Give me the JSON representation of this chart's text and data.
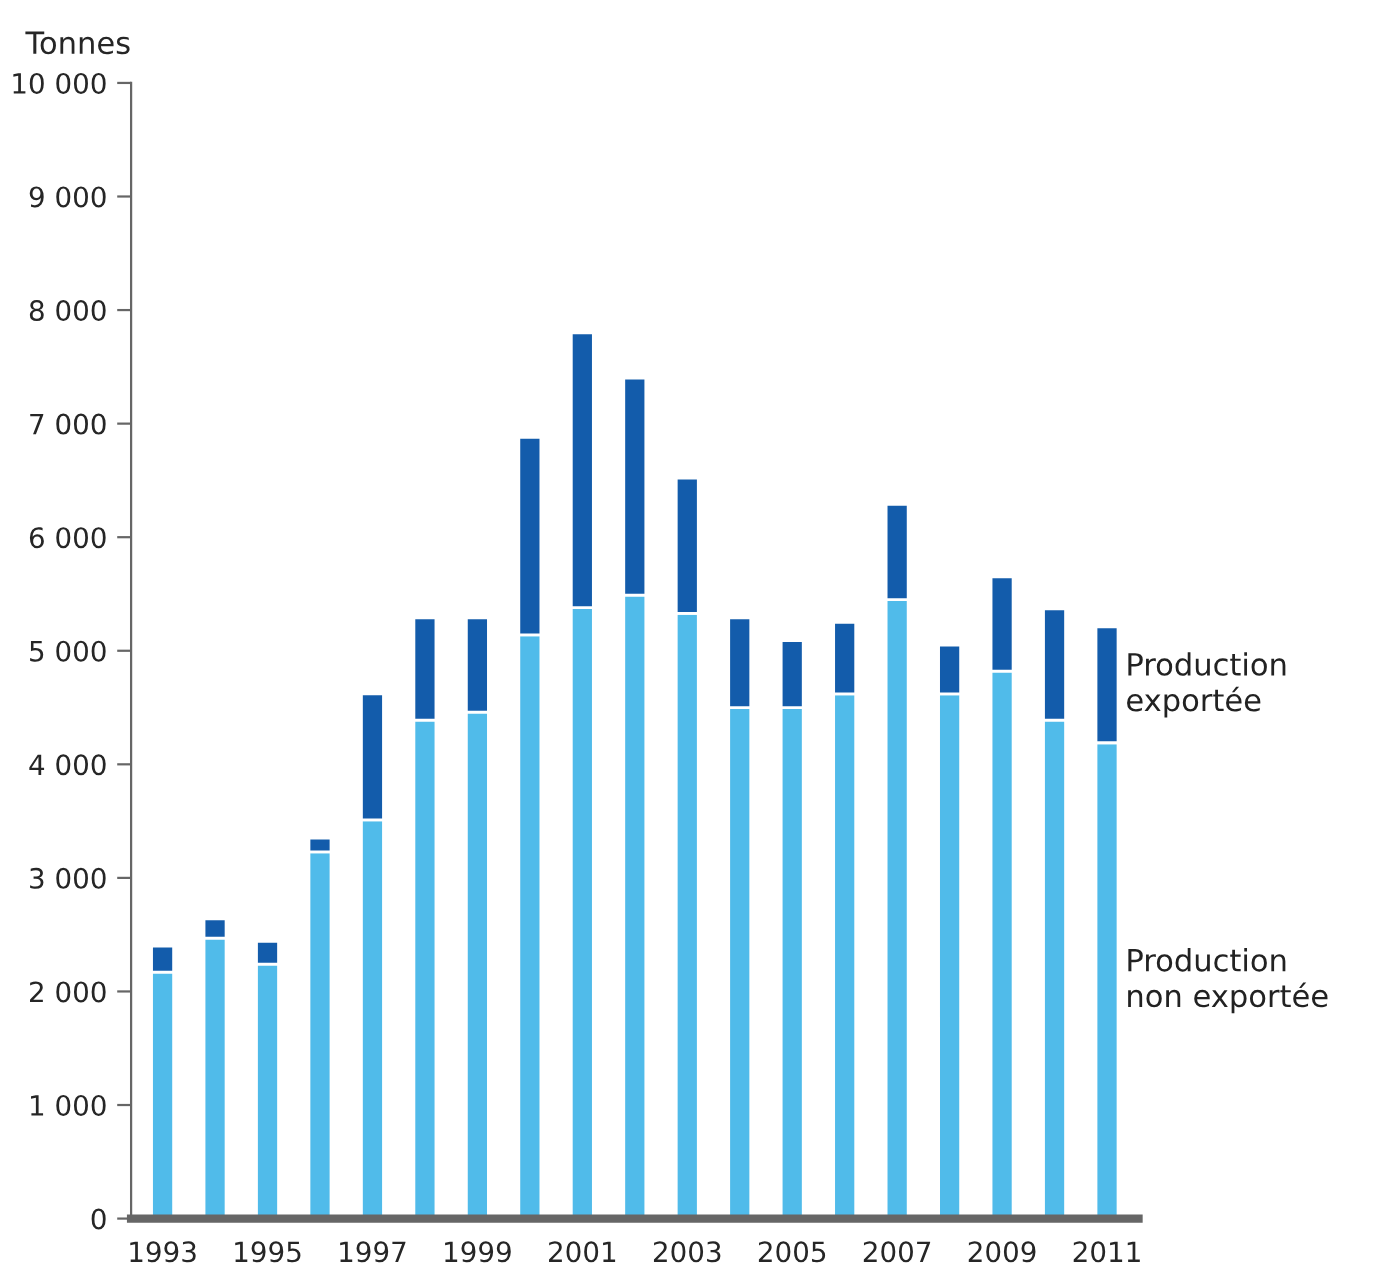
{
  "chart_data": {
    "type": "bar",
    "ylabel": "Tonnes",
    "stacked": true,
    "legend": false,
    "grid": false,
    "categories": [
      "1993",
      null,
      "1995",
      null,
      "1997",
      null,
      "1999",
      null,
      "2001",
      null,
      "2003",
      null,
      "2005",
      null,
      "2007",
      null,
      "2009",
      null,
      "2011"
    ],
    "series": [
      {
        "name": "Production\nnon exportée",
        "color": "#50bbea",
        "values": [
          2170,
          2470,
          2240,
          3230,
          3510,
          4390,
          4460,
          5140,
          5380,
          5490,
          5330,
          4500,
          4500,
          4620,
          5450,
          4620,
          4820,
          4390,
          4190
        ]
      },
      {
        "name": "Production\nexportée",
        "color": "#135cab",
        "values": [
          230,
          170,
          200,
          120,
          1110,
          900,
          830,
          1740,
          2420,
          1910,
          1190,
          790,
          590,
          630,
          840,
          430,
          830,
          980,
          1020
        ]
      }
    ],
    "ylim": [
      0,
      10000
    ],
    "yticks": [
      0,
      {
        "value": 1000,
        "label": "1 000"
      },
      {
        "value": 2000,
        "label": "2 000"
      },
      {
        "value": 3000,
        "label": "3 000"
      },
      {
        "value": 4000,
        "label": "4 000"
      },
      {
        "value": 5000,
        "label": "5 000"
      },
      {
        "value": 6000,
        "label": "6 000"
      },
      {
        "value": 7000,
        "label": "7 000"
      },
      {
        "value": 8000,
        "label": "8 000"
      },
      {
        "value": 9000,
        "label": "9 000"
      },
      {
        "value": 10000,
        "label": "10 000"
      }
    ]
  }
}
